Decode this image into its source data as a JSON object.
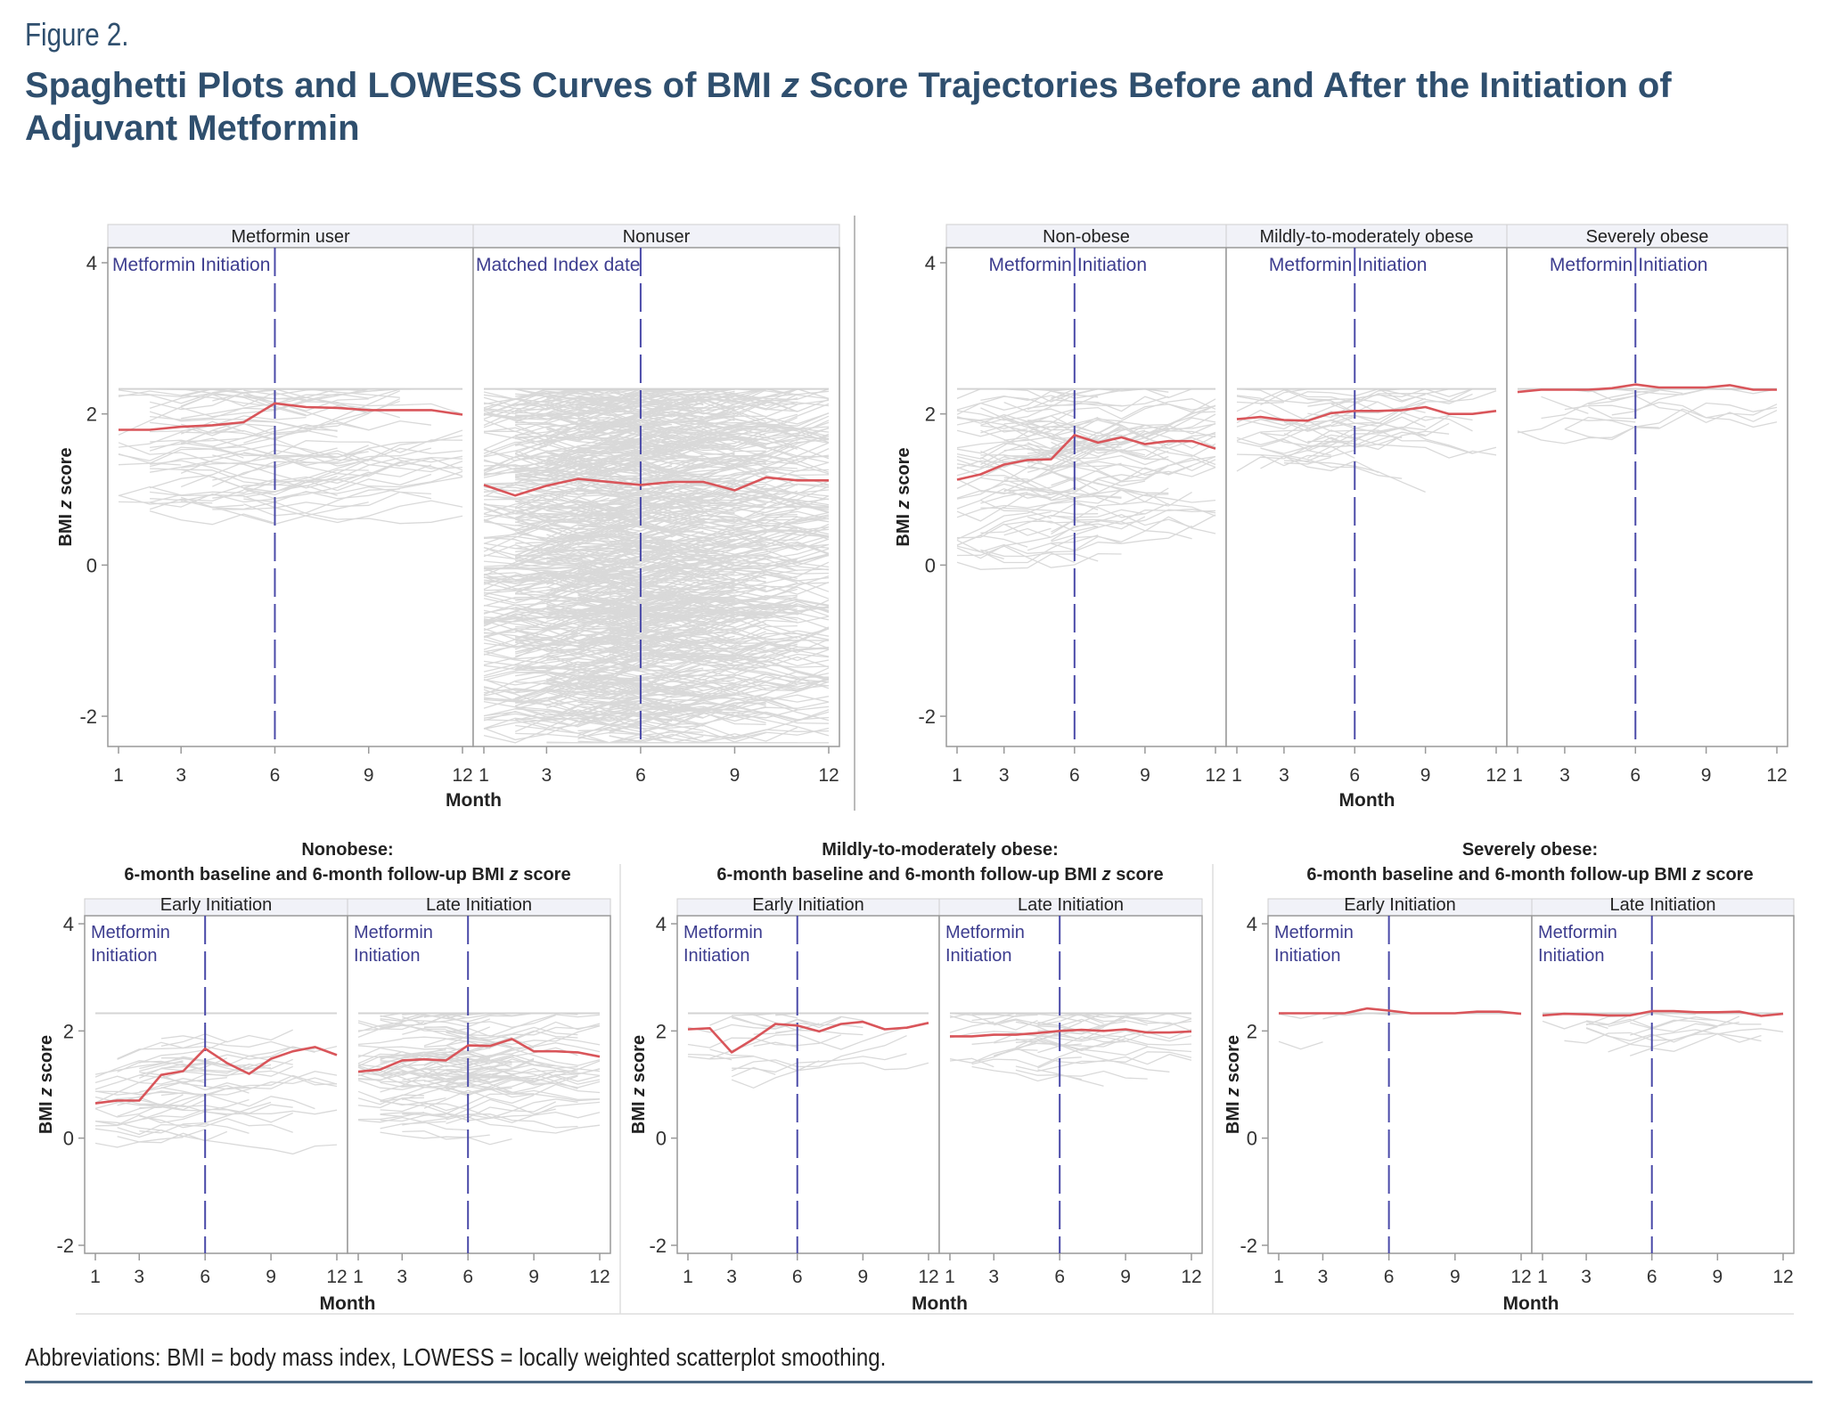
{
  "figure": {
    "label": "Figure 2.",
    "title_part1": "Spaghetti Plots and LOWESS Curves of BMI ",
    "title_italic": "z",
    "title_part2": " Score Trajectories Before and After the Initiation of Adjuvant Metformin",
    "abbreviations": "Abbreviations: BMI = body mass index, LOWESS = locally weighted scatterplot smoothing."
  },
  "colors": {
    "title": "#2f4f6e",
    "lowess": "#d9555a",
    "spaghetti": "#d3d3d3",
    "reference_line": "#4a4aa8",
    "annotation_text": "#3d3d8f",
    "header_strip": "#f1f2f8",
    "frame": "#999999"
  },
  "chart_data": [
    {
      "type": "line",
      "group": "top-left",
      "ylabel": "BMI z score",
      "xlabel": "Month",
      "x": [
        1,
        2,
        3,
        4,
        5,
        6,
        7,
        8,
        9,
        10,
        11,
        12
      ],
      "xticks": [
        1,
        3,
        6,
        9,
        12
      ],
      "yticks": [
        4,
        2,
        0,
        -2
      ],
      "ylim": [
        -2.4,
        4.2
      ],
      "reference_x": 6,
      "panels": [
        {
          "header": "Metformin user",
          "annotation": "Metformin Initiation",
          "series": [
            {
              "name": "LOWESS",
              "values": [
                1.79,
                1.79,
                1.83,
                1.85,
                1.89,
                2.14,
                2.09,
                2.08,
                2.05,
                2.05,
                2.05,
                1.99
              ]
            }
          ],
          "spaghetti_density": "moderate"
        },
        {
          "header": "Nonuser",
          "annotation": "Matched Index date",
          "series": [
            {
              "name": "LOWESS",
              "values": [
                1.06,
                0.92,
                1.05,
                1.14,
                1.1,
                1.06,
                1.1,
                1.1,
                0.99,
                1.16,
                1.12,
                1.12
              ]
            }
          ],
          "spaghetti_density": "dense"
        }
      ]
    },
    {
      "type": "line",
      "group": "top-right",
      "ylabel": "BMI z score",
      "xlabel": "Month",
      "x": [
        1,
        2,
        3,
        4,
        5,
        6,
        7,
        8,
        9,
        10,
        11,
        12
      ],
      "xticks": [
        1,
        3,
        6,
        9,
        12
      ],
      "yticks": [
        4,
        2,
        0,
        -2
      ],
      "ylim": [
        -2.4,
        4.2
      ],
      "reference_x": 6,
      "panels": [
        {
          "header": "Non-obese",
          "annotation": "Metformin Initiation",
          "series": [
            {
              "name": "LOWESS",
              "values": [
                1.13,
                1.2,
                1.33,
                1.39,
                1.4,
                1.72,
                1.62,
                1.69,
                1.6,
                1.64,
                1.64,
                1.54
              ]
            }
          ],
          "spaghetti_density": "moderate"
        },
        {
          "header": "Mildly-to-moderately obese",
          "annotation": "Metformin Initiation",
          "series": [
            {
              "name": "LOWESS",
              "values": [
                1.93,
                1.96,
                1.92,
                1.91,
                2.01,
                2.04,
                2.04,
                2.05,
                2.09,
                2.0,
                2.0,
                2.04
              ]
            }
          ],
          "spaghetti_density": "light"
        },
        {
          "header": "Severely obese",
          "annotation": "Metformin Initiation",
          "series": [
            {
              "name": "LOWESS",
              "values": [
                2.29,
                2.32,
                2.32,
                2.32,
                2.34,
                2.39,
                2.35,
                2.35,
                2.35,
                2.38,
                2.32,
                2.32
              ]
            }
          ],
          "spaghetti_density": "sparse"
        }
      ]
    },
    {
      "type": "line",
      "group": "bottom-1",
      "title_line1": "Nonobese:",
      "title_line2_part1": "6-month baseline and 6-month follow-up BMI ",
      "title_line2_italic": "z",
      "title_line2_part2": " score",
      "ylabel": "BMI z score",
      "xlabel": "Month",
      "x": [
        1,
        2,
        3,
        4,
        5,
        6,
        7,
        8,
        9,
        10,
        11,
        12
      ],
      "xticks": [
        1,
        3,
        6,
        9,
        12
      ],
      "yticks": [
        4,
        2,
        0,
        -2
      ],
      "ylim": [
        -2.15,
        4.15
      ],
      "reference_x": 6,
      "panels": [
        {
          "header": "Early Initiation",
          "annotation_line1": "Metformin",
          "annotation_line2": "Initiation",
          "series": [
            {
              "name": "LOWESS",
              "values": [
                0.65,
                0.7,
                0.7,
                1.18,
                1.25,
                1.67,
                1.4,
                1.2,
                1.48,
                1.62,
                1.7,
                1.55
              ]
            }
          ],
          "spaghetti_density": "light"
        },
        {
          "header": "Late Initiation",
          "annotation_line1": "Metformin",
          "annotation_line2": "Initiation",
          "series": [
            {
              "name": "LOWESS",
              "values": [
                1.24,
                1.28,
                1.45,
                1.47,
                1.45,
                1.73,
                1.72,
                1.85,
                1.62,
                1.62,
                1.6,
                1.52
              ]
            }
          ],
          "spaghetti_density": "moderate"
        }
      ]
    },
    {
      "type": "line",
      "group": "bottom-2",
      "title_line1": "Mildly-to-moderately obese:",
      "title_line2_part1": "6-month baseline and 6-month follow-up BMI ",
      "title_line2_italic": "z",
      "title_line2_part2": " score",
      "ylabel": "BMI z score",
      "xlabel": "Month",
      "x": [
        1,
        2,
        3,
        4,
        5,
        6,
        7,
        8,
        9,
        10,
        11,
        12
      ],
      "xticks": [
        1,
        3,
        6,
        9,
        12
      ],
      "yticks": [
        4,
        2,
        0,
        -2
      ],
      "ylim": [
        -2.15,
        4.15
      ],
      "reference_x": 6,
      "panels": [
        {
          "header": "Early Initiation",
          "annotation_line1": "Metformin",
          "annotation_line2": "Initiation",
          "series": [
            {
              "name": "LOWESS",
              "values": [
                2.03,
                2.05,
                1.6,
                1.85,
                2.13,
                2.1,
                1.99,
                2.13,
                2.17,
                2.03,
                2.06,
                2.15
              ]
            }
          ],
          "spaghetti_density": "sparse"
        },
        {
          "header": "Late Initiation",
          "annotation_line1": "Metformin",
          "annotation_line2": "Initiation",
          "series": [
            {
              "name": "LOWESS",
              "values": [
                1.9,
                1.9,
                1.93,
                1.93,
                1.96,
                2.0,
                2.02,
                2.0,
                2.03,
                1.97,
                1.97,
                1.99
              ]
            }
          ],
          "spaghetti_density": "light"
        }
      ]
    },
    {
      "type": "line",
      "group": "bottom-3",
      "title_line1": "Severely obese:",
      "title_line2_part1": "6-month baseline and 6-month follow-up BMI ",
      "title_line2_italic": "z",
      "title_line2_part2": " score",
      "ylabel": "BMI z score",
      "xlabel": "Month",
      "x": [
        1,
        2,
        3,
        4,
        5,
        6,
        7,
        8,
        9,
        10,
        11,
        12
      ],
      "xticks": [
        1,
        3,
        6,
        9,
        12
      ],
      "yticks": [
        4,
        2,
        0,
        -2
      ],
      "ylim": [
        -2.15,
        4.15
      ],
      "reference_x": 6,
      "panels": [
        {
          "header": "Early Initiation",
          "annotation_line1": "Metformin",
          "annotation_line2": "Initiation",
          "series": [
            {
              "name": "LOWESS",
              "values": [
                2.33,
                2.33,
                2.33,
                2.33,
                2.42,
                2.38,
                2.33,
                2.33,
                2.33,
                2.36,
                2.36,
                2.32
              ]
            }
          ],
          "spaghetti_density": "very-sparse"
        },
        {
          "header": "Late Initiation",
          "annotation_line1": "Metformin",
          "annotation_line2": "Initiation",
          "series": [
            {
              "name": "LOWESS",
              "values": [
                2.29,
                2.32,
                2.31,
                2.29,
                2.29,
                2.37,
                2.37,
                2.35,
                2.35,
                2.36,
                2.28,
                2.32
              ]
            }
          ],
          "spaghetti_density": "sparse"
        }
      ]
    }
  ]
}
